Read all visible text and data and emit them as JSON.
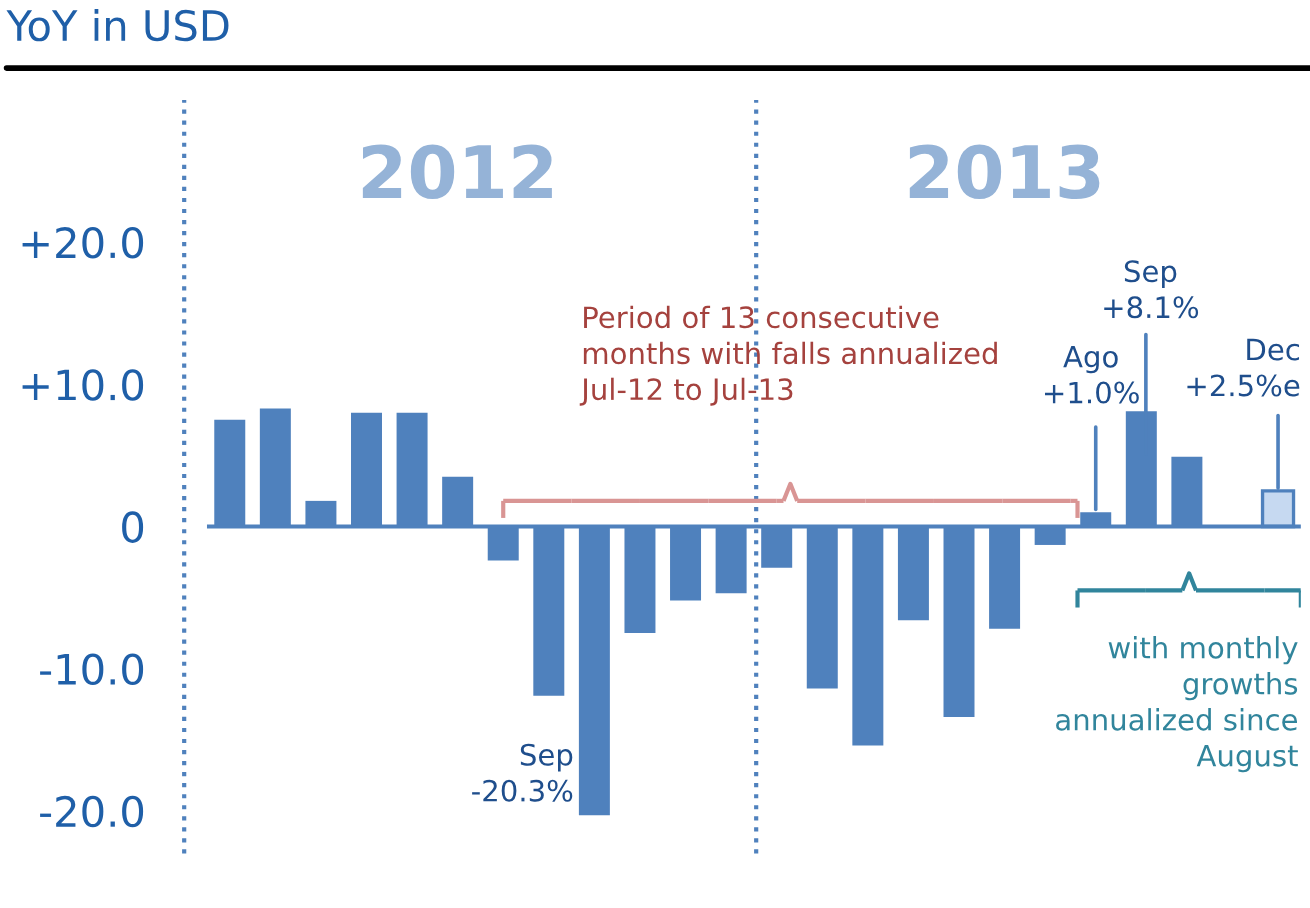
{
  "chart_data": {
    "type": "bar",
    "title": "YoY in USD",
    "categories": [
      null,
      null,
      null,
      null,
      null,
      null,
      null,
      null,
      null,
      null,
      null,
      null,
      null,
      null,
      null,
      null,
      null,
      null,
      null,
      null,
      null,
      null,
      null,
      null
    ],
    "values": [
      7.5,
      8.3,
      1.8,
      8.0,
      8.0,
      3.5,
      -2.4,
      -11.9,
      -20.3,
      -7.5,
      -5.2,
      -4.7,
      -2.9,
      -11.4,
      -15.4,
      -6.6,
      -13.4,
      -7.2,
      -1.3,
      1.0,
      8.1,
      4.9,
      0.1,
      2.5
    ],
    "colors": [
      "#4f81bd",
      "#4f81bd",
      "#4f81bd",
      "#4f81bd",
      "#4f81bd",
      "#4f81bd",
      "#4f81bd",
      "#4f81bd",
      "#4f81bd",
      "#4f81bd",
      "#4f81bd",
      "#4f81bd",
      "#4f81bd",
      "#4f81bd",
      "#4f81bd",
      "#4f81bd",
      "#4f81bd",
      "#4f81bd",
      "#4f81bd",
      "#4f81bd",
      "#4f81bd",
      "#4f81bd",
      "#4f81bd",
      "#c6d9f1"
    ],
    "ylim": [
      -23,
      30
    ],
    "yticks": [
      {
        "value": 20,
        "label": "+20.0"
      },
      {
        "value": 10,
        "label": "+10.0"
      },
      0,
      {
        "value": -10,
        "label": "-10.0"
      },
      {
        "value": -20,
        "label": "-20.0"
      }
    ],
    "annotations": [
      "2012",
      "2013",
      "Sep\n-20.3%",
      "Ago\n+1.0%",
      "Sep\n+8.1%",
      "Dec\n+2.5%e",
      "Period of 13 consecutive\nmonths with falls annualized\nJul-12 to Jul-13",
      "with monthly\ngrowths\nannualized since\nAugust"
    ],
    "ref_lines": [
      {
        "axis": "y",
        "value": 0,
        "color": "#4f81bd",
        "line_style": "solid"
      }
    ],
    "grid": false,
    "legend": false
  }
}
